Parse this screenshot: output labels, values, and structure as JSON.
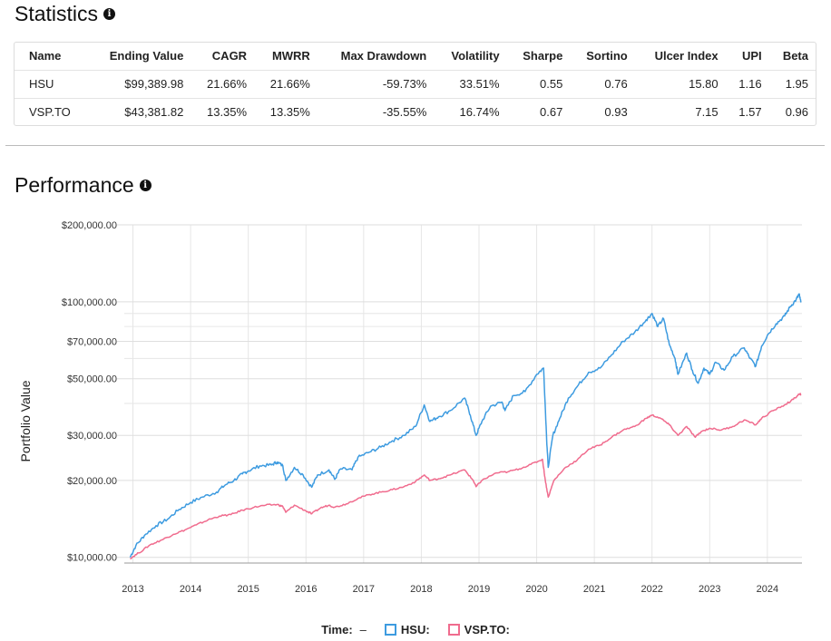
{
  "statistics": {
    "title": "Statistics",
    "columns": [
      "Name",
      "Ending Value",
      "CAGR",
      "MWRR",
      "Max Drawdown",
      "Volatility",
      "Sharpe",
      "Sortino",
      "Ulcer Index",
      "UPI",
      "Beta"
    ],
    "rows": [
      [
        "HSU",
        "$99,389.98",
        "21.66%",
        "21.66%",
        "-59.73%",
        "33.51%",
        "0.55",
        "0.76",
        "15.80",
        "1.16",
        "1.95"
      ],
      [
        "VSP.TO",
        "$43,381.82",
        "13.35%",
        "13.35%",
        "-35.55%",
        "16.74%",
        "0.67",
        "0.93",
        "7.15",
        "1.57",
        "0.96"
      ]
    ]
  },
  "performance": {
    "title": "Performance",
    "legend": {
      "time_label": "Time:",
      "time_value": "–",
      "hsu": "HSU:",
      "vsp": "VSP.TO:"
    }
  },
  "chart_data": {
    "type": "line",
    "ylabel": "Portfolio Value",
    "yscale": "log",
    "ylim": [
      9500,
      200000
    ],
    "y_ticks": [
      {
        "v": 200000,
        "label": "$200,000.00"
      },
      {
        "v": 100000,
        "label": "$100,000.00"
      },
      {
        "v": 70000,
        "label": "$70,000.00"
      },
      {
        "v": 50000,
        "label": "$50,000.00"
      },
      {
        "v": 30000,
        "label": "$30,000.00"
      },
      {
        "v": 20000,
        "label": "$20,000.00"
      },
      {
        "v": 10000,
        "label": "$10,000.00"
      }
    ],
    "y_minor_grid": [
      40000,
      60000,
      80000,
      90000
    ],
    "xlim": [
      2012.85,
      2024.6
    ],
    "x_ticks": [
      "2013",
      "2014",
      "2015",
      "2016",
      "2017",
      "2018",
      "2019",
      "2020",
      "2021",
      "2022",
      "2023",
      "2024"
    ],
    "grid": true,
    "series": [
      {
        "name": "HSU",
        "color": "#3d9be0",
        "points": [
          [
            2012.95,
            10000
          ],
          [
            2013.05,
            11100
          ],
          [
            2013.2,
            12200
          ],
          [
            2013.4,
            13300
          ],
          [
            2013.6,
            14100
          ],
          [
            2013.8,
            15400
          ],
          [
            2014.0,
            16400
          ],
          [
            2014.2,
            17200
          ],
          [
            2014.45,
            18000
          ],
          [
            2014.6,
            19200
          ],
          [
            2014.75,
            20000
          ],
          [
            2014.9,
            21200
          ],
          [
            2015.0,
            21800
          ],
          [
            2015.2,
            22800
          ],
          [
            2015.4,
            23000
          ],
          [
            2015.5,
            23600
          ],
          [
            2015.6,
            22800
          ],
          [
            2015.65,
            20000
          ],
          [
            2015.8,
            22500
          ],
          [
            2015.95,
            21000
          ],
          [
            2016.1,
            18800
          ],
          [
            2016.2,
            21000
          ],
          [
            2016.4,
            22000
          ],
          [
            2016.5,
            20200
          ],
          [
            2016.6,
            22200
          ],
          [
            2016.8,
            22000
          ],
          [
            2016.9,
            24600
          ],
          [
            2017.1,
            25800
          ],
          [
            2017.3,
            27000
          ],
          [
            2017.5,
            28600
          ],
          [
            2017.7,
            30000
          ],
          [
            2017.9,
            32500
          ],
          [
            2018.05,
            39500
          ],
          [
            2018.15,
            34000
          ],
          [
            2018.3,
            35500
          ],
          [
            2018.5,
            37500
          ],
          [
            2018.75,
            42000
          ],
          [
            2018.85,
            36000
          ],
          [
            2018.95,
            30000
          ],
          [
            2019.05,
            34000
          ],
          [
            2019.2,
            39000
          ],
          [
            2019.4,
            40500
          ],
          [
            2019.45,
            37500
          ],
          [
            2019.6,
            43000
          ],
          [
            2019.8,
            44500
          ],
          [
            2020.0,
            52000
          ],
          [
            2020.12,
            55000
          ],
          [
            2020.17,
            30000
          ],
          [
            2020.2,
            22500
          ],
          [
            2020.28,
            30000
          ],
          [
            2020.4,
            35000
          ],
          [
            2020.55,
            42000
          ],
          [
            2020.7,
            46500
          ],
          [
            2020.9,
            53000
          ],
          [
            2021.1,
            55000
          ],
          [
            2021.3,
            62000
          ],
          [
            2021.5,
            70000
          ],
          [
            2021.7,
            76000
          ],
          [
            2021.9,
            85000
          ],
          [
            2022.0,
            90000
          ],
          [
            2022.1,
            80000
          ],
          [
            2022.2,
            86000
          ],
          [
            2022.3,
            68000
          ],
          [
            2022.4,
            60000
          ],
          [
            2022.45,
            52000
          ],
          [
            2022.6,
            63000
          ],
          [
            2022.7,
            54000
          ],
          [
            2022.8,
            48000
          ],
          [
            2022.9,
            55000
          ],
          [
            2023.0,
            52000
          ],
          [
            2023.1,
            58000
          ],
          [
            2023.25,
            54000
          ],
          [
            2023.4,
            61000
          ],
          [
            2023.6,
            66000
          ],
          [
            2023.7,
            60000
          ],
          [
            2023.8,
            56000
          ],
          [
            2023.9,
            67000
          ],
          [
            2024.0,
            74000
          ],
          [
            2024.15,
            82000
          ],
          [
            2024.3,
            88000
          ],
          [
            2024.4,
            96000
          ],
          [
            2024.5,
            102000
          ],
          [
            2024.55,
            107000
          ],
          [
            2024.58,
            99400
          ]
        ]
      },
      {
        "name": "VSP.TO",
        "color": "#f06c8e",
        "points": [
          [
            2012.95,
            9900
          ],
          [
            2013.1,
            10400
          ],
          [
            2013.3,
            11200
          ],
          [
            2013.5,
            11700
          ],
          [
            2013.7,
            12300
          ],
          [
            2013.9,
            12800
          ],
          [
            2014.1,
            13400
          ],
          [
            2014.3,
            14000
          ],
          [
            2014.5,
            14500
          ],
          [
            2014.7,
            14700
          ],
          [
            2014.9,
            15300
          ],
          [
            2015.1,
            15700
          ],
          [
            2015.3,
            16000
          ],
          [
            2015.5,
            16100
          ],
          [
            2015.6,
            15800
          ],
          [
            2015.65,
            15000
          ],
          [
            2015.8,
            16000
          ],
          [
            2016.0,
            15200
          ],
          [
            2016.1,
            14800
          ],
          [
            2016.25,
            15600
          ],
          [
            2016.4,
            16000
          ],
          [
            2016.5,
            15700
          ],
          [
            2016.7,
            16200
          ],
          [
            2016.9,
            17000
          ],
          [
            2017.1,
            17600
          ],
          [
            2017.3,
            18000
          ],
          [
            2017.5,
            18400
          ],
          [
            2017.7,
            18900
          ],
          [
            2017.9,
            19800
          ],
          [
            2018.05,
            21000
          ],
          [
            2018.15,
            20000
          ],
          [
            2018.3,
            20300
          ],
          [
            2018.5,
            21000
          ],
          [
            2018.75,
            22000
          ],
          [
            2018.9,
            20000
          ],
          [
            2018.95,
            18900
          ],
          [
            2019.05,
            20000
          ],
          [
            2019.3,
            21400
          ],
          [
            2019.5,
            21600
          ],
          [
            2019.7,
            22200
          ],
          [
            2019.9,
            23100
          ],
          [
            2020.1,
            24200
          ],
          [
            2020.15,
            20000
          ],
          [
            2020.2,
            17200
          ],
          [
            2020.3,
            20000
          ],
          [
            2020.5,
            22500
          ],
          [
            2020.7,
            24000
          ],
          [
            2020.9,
            26500
          ],
          [
            2021.1,
            27500
          ],
          [
            2021.3,
            29500
          ],
          [
            2021.5,
            31500
          ],
          [
            2021.7,
            32500
          ],
          [
            2021.9,
            35000
          ],
          [
            2022.0,
            36000
          ],
          [
            2022.15,
            35000
          ],
          [
            2022.3,
            33000
          ],
          [
            2022.45,
            30000
          ],
          [
            2022.6,
            32500
          ],
          [
            2022.75,
            29500
          ],
          [
            2022.85,
            31000
          ],
          [
            2023.0,
            32000
          ],
          [
            2023.2,
            31500
          ],
          [
            2023.4,
            32500
          ],
          [
            2023.6,
            34500
          ],
          [
            2023.8,
            33000
          ],
          [
            2023.9,
            35000
          ],
          [
            2024.1,
            37500
          ],
          [
            2024.3,
            39500
          ],
          [
            2024.45,
            41500
          ],
          [
            2024.55,
            43500
          ],
          [
            2024.58,
            43400
          ]
        ]
      }
    ]
  }
}
